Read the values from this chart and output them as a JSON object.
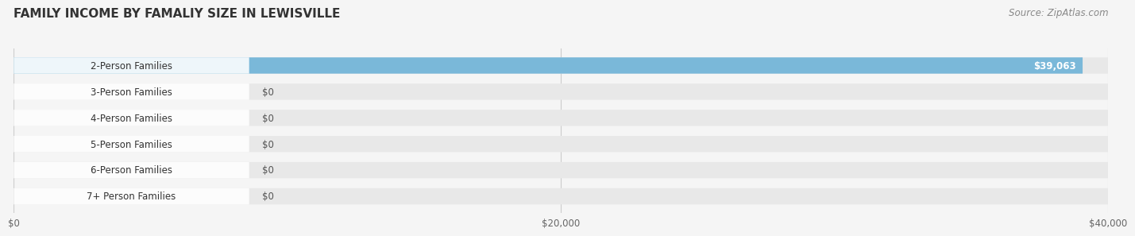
{
  "title": "FAMILY INCOME BY FAMALIY SIZE IN LEWISVILLE",
  "source": "Source: ZipAtlas.com",
  "categories": [
    "2-Person Families",
    "3-Person Families",
    "4-Person Families",
    "5-Person Families",
    "6-Person Families",
    "7+ Person Families"
  ],
  "values": [
    39063,
    0,
    0,
    0,
    0,
    0
  ],
  "bar_colors": [
    "#7ab8d9",
    "#c9a8c8",
    "#7ecdc0",
    "#b0acd8",
    "#f4a0b0",
    "#f7d09a"
  ],
  "max_value": 40000,
  "x_ticks": [
    0,
    20000,
    40000
  ],
  "x_tick_labels": [
    "$0",
    "$20,000",
    "$40,000"
  ],
  "background_color": "#f5f5f5",
  "bar_bg_color": "#e8e8e8",
  "title_fontsize": 11,
  "source_fontsize": 8.5,
  "label_fontsize": 8.5,
  "value_label_color_bar": "#ffffff",
  "value_label_color_zero": "#555555"
}
